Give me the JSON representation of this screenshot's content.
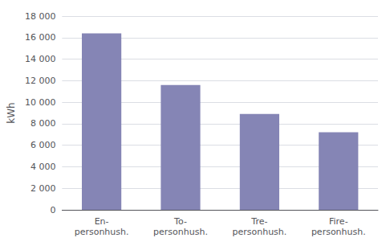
{
  "chart_data": {
    "type": "bar",
    "ylabel": "kWh",
    "categories": [
      "En-\npersonhush.",
      "To-\npersonhush.",
      "Tre-\npersonhush.",
      "Fire-\npersonhush."
    ],
    "values": [
      16400,
      11600,
      8900,
      7200
    ],
    "color": "#8585b5",
    "ylim": [
      0,
      18000
    ],
    "yticks": [
      0,
      {
        "value": 2000,
        "label": "2 000"
      },
      {
        "value": 4000,
        "label": "4 000"
      },
      {
        "value": 6000,
        "label": "6 000"
      },
      {
        "value": 8000,
        "label": "8 000"
      },
      {
        "value": 10000,
        "label": "10 000"
      },
      {
        "value": 12000,
        "label": "12 000"
      },
      {
        "value": 14000,
        "label": "14 000"
      },
      {
        "value": 16000,
        "label": "16 000"
      },
      {
        "value": 18000,
        "label": "18 000"
      }
    ],
    "grid": true
  }
}
